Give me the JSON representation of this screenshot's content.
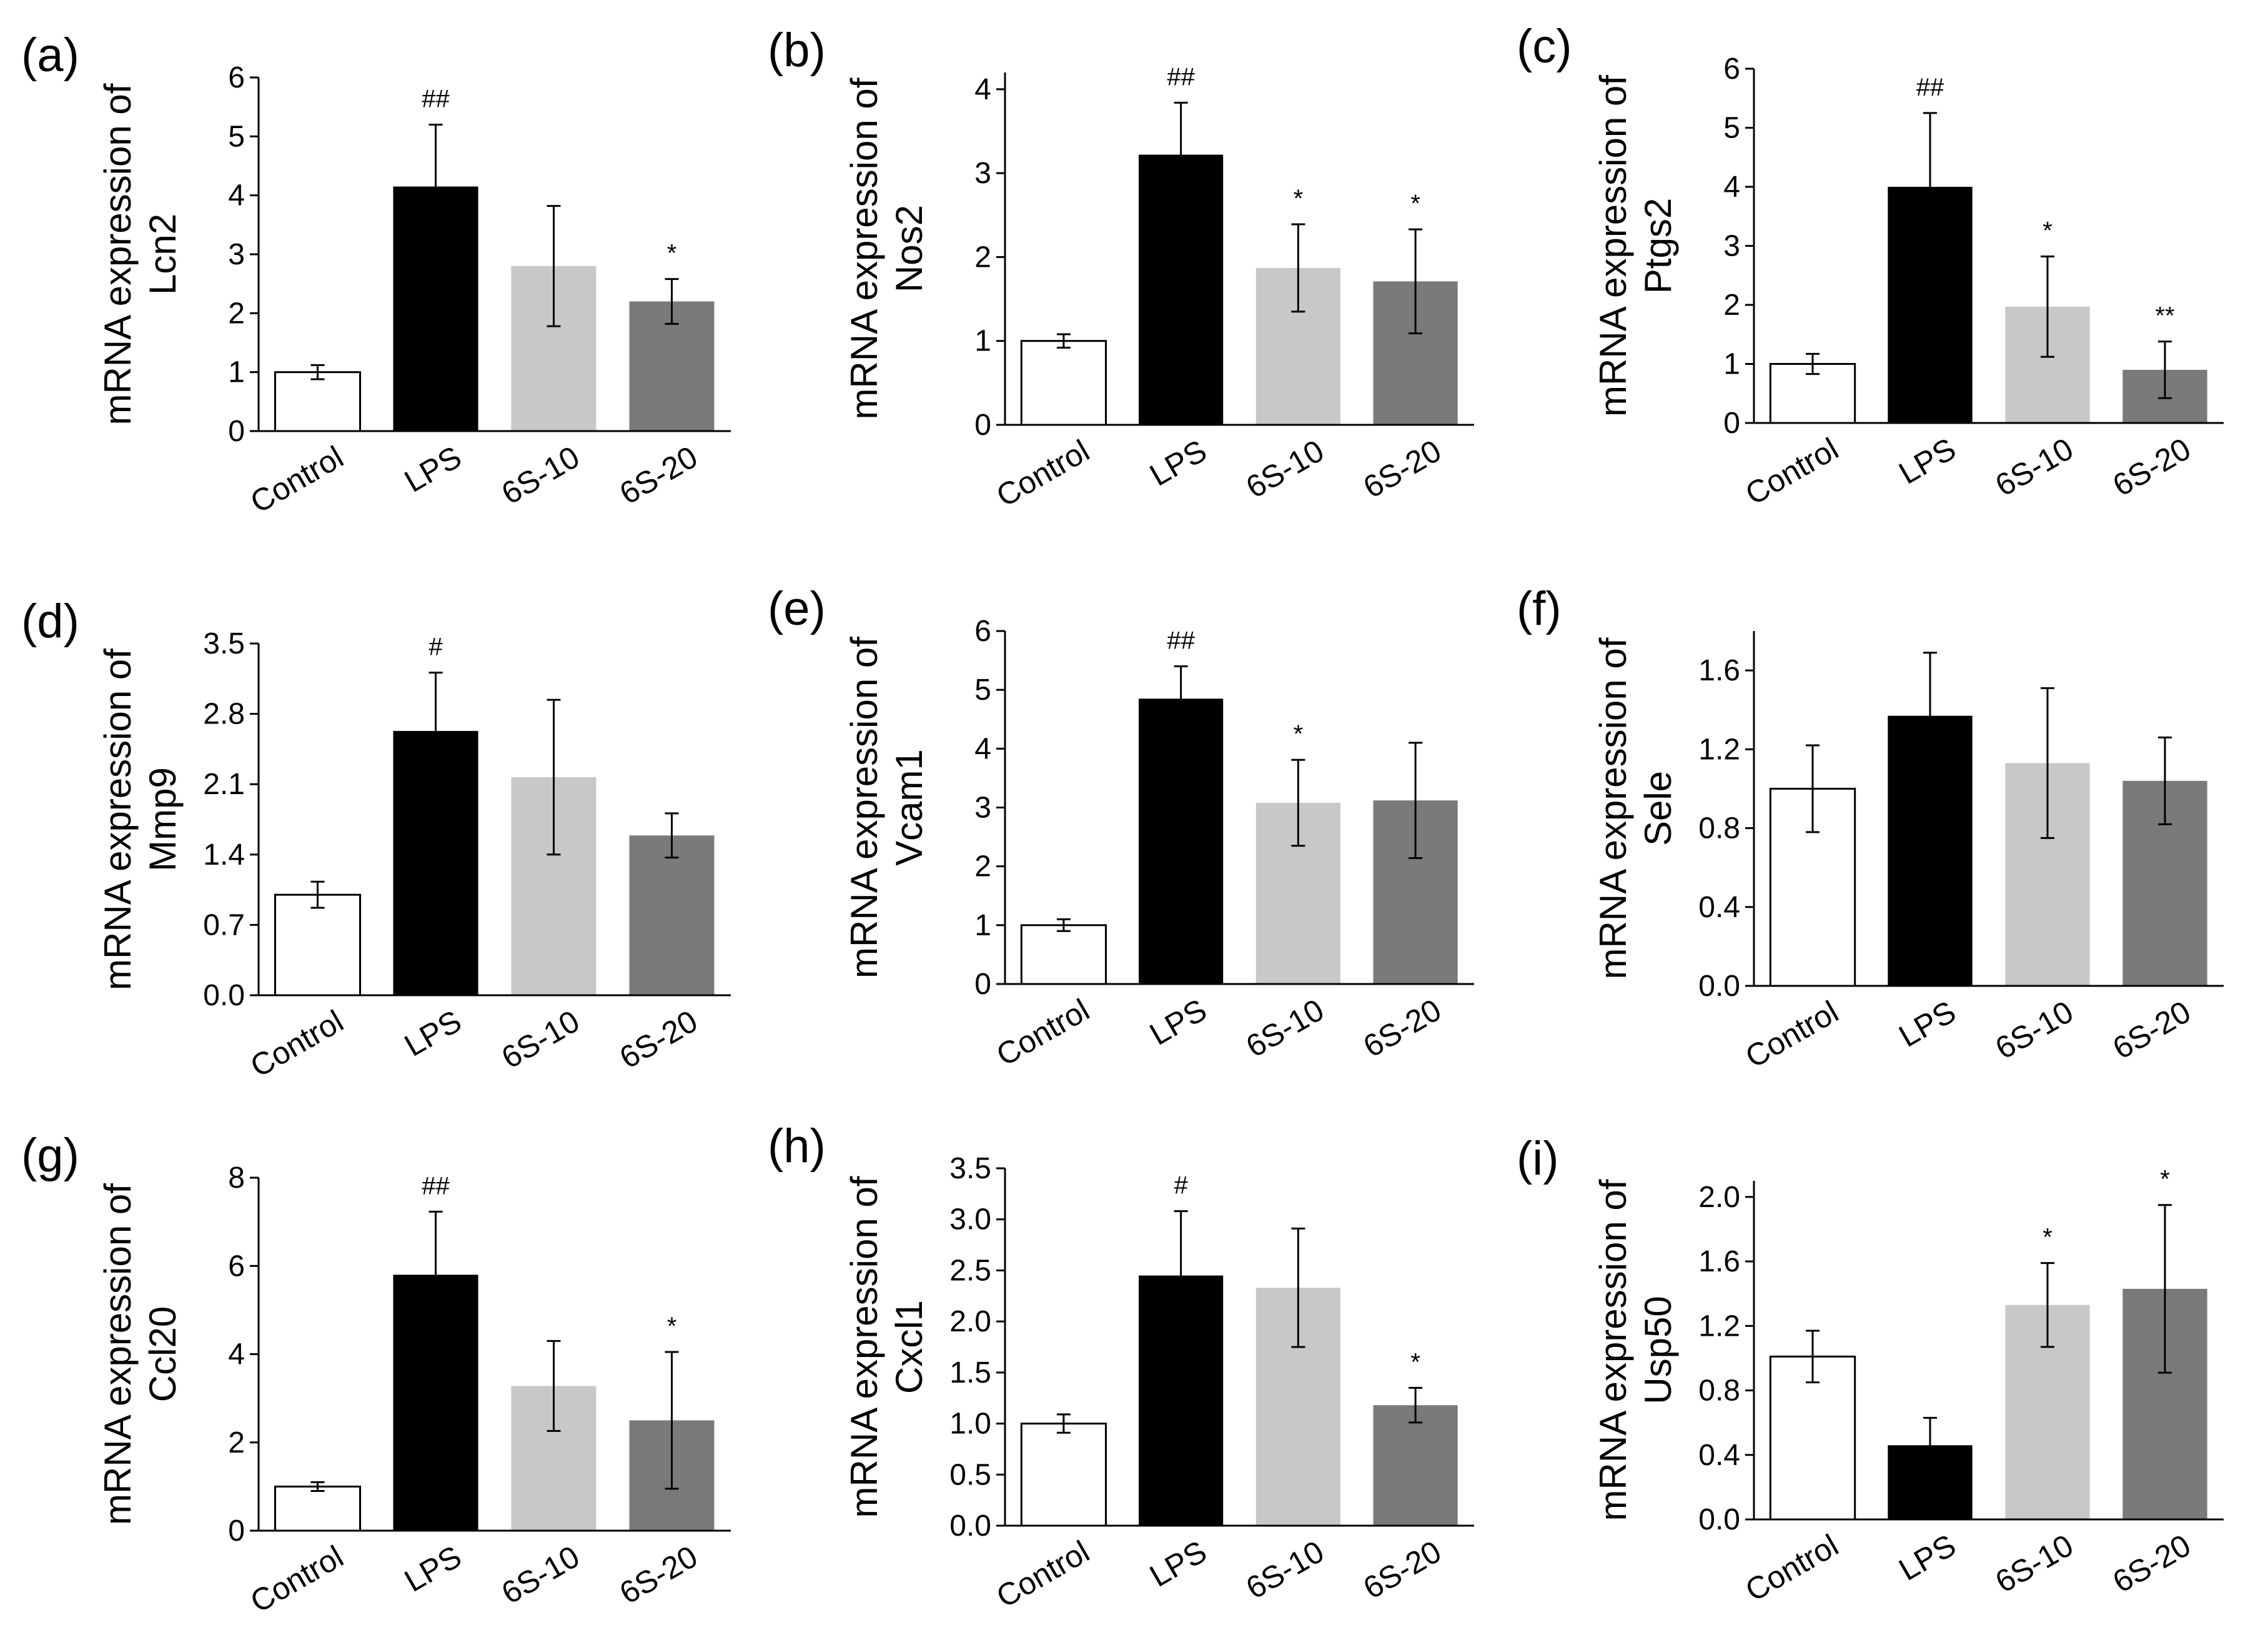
{
  "figure": {
    "categories": [
      "Control",
      "LPS",
      "6S-10",
      "6S-20"
    ],
    "bar_colors": [
      "#ffffff",
      "#000000",
      "#c8c8c8",
      "#7a7a7a"
    ],
    "axis_color": "#000000"
  },
  "chart_data": [
    {
      "panel": "(a)",
      "type": "bar",
      "ylabel_line1": "mRNA expression of",
      "ylabel_line2": "Lcn2",
      "categories": [
        "Control",
        "LPS",
        "6S-10",
        "6S-20"
      ],
      "values": [
        1.0,
        4.15,
        2.8,
        2.2
      ],
      "errors": [
        0.12,
        1.05,
        1.02,
        0.38
      ],
      "significance": [
        "",
        "##",
        "",
        "*"
      ],
      "ylim": [
        0,
        6
      ],
      "yticks": [
        "0",
        "1",
        "2",
        "3",
        "4",
        "5",
        "6"
      ]
    },
    {
      "panel": "(b)",
      "type": "bar",
      "ylabel_line1": "mRNA expression of",
      "ylabel_line2": "Nos2",
      "categories": [
        "Control",
        "LPS",
        "6S-10",
        "6S-20"
      ],
      "values": [
        1.0,
        3.22,
        1.87,
        1.71
      ],
      "errors": [
        0.08,
        0.62,
        0.52,
        0.62
      ],
      "significance": [
        "",
        "##",
        "*",
        "*"
      ],
      "ylim": [
        0,
        4.2
      ],
      "yticks": [
        "0",
        "1",
        "2",
        "3",
        "4"
      ]
    },
    {
      "panel": "(c)",
      "type": "bar",
      "ylabel_line1": "mRNA expression of",
      "ylabel_line2": "Ptgs2",
      "categories": [
        "Control",
        "LPS",
        "6S-10",
        "6S-20"
      ],
      "values": [
        1.0,
        4.0,
        1.97,
        0.9
      ],
      "errors": [
        0.17,
        1.25,
        0.85,
        0.48
      ],
      "significance": [
        "",
        "##",
        "*",
        "**"
      ],
      "ylim": [
        0,
        6
      ],
      "yticks": [
        "0",
        "1",
        "2",
        "3",
        "4",
        "5",
        "6"
      ]
    },
    {
      "panel": "(d)",
      "type": "bar",
      "ylabel_line1": "mRNA expression of",
      "ylabel_line2": "Mmp9",
      "categories": [
        "Control",
        "LPS",
        "6S-10",
        "6S-20"
      ],
      "values": [
        1.0,
        2.63,
        2.17,
        1.59
      ],
      "errors": [
        0.13,
        0.58,
        0.77,
        0.22
      ],
      "significance": [
        "",
        "#",
        "",
        ""
      ],
      "ylim": [
        0,
        3.5
      ],
      "yticks": [
        "0.0",
        "0.7",
        "1.4",
        "2.1",
        "2.8",
        "3.5"
      ]
    },
    {
      "panel": "(e)",
      "type": "bar",
      "ylabel_line1": "mRNA expression of",
      "ylabel_line2": "Vcam1",
      "categories": [
        "Control",
        "LPS",
        "6S-10",
        "6S-20"
      ],
      "values": [
        1.0,
        4.85,
        3.08,
        3.12
      ],
      "errors": [
        0.1,
        0.55,
        0.73,
        0.98
      ],
      "significance": [
        "",
        "##",
        "*",
        ""
      ],
      "ylim": [
        0,
        6
      ],
      "yticks": [
        "0",
        "1",
        "2",
        "3",
        "4",
        "5",
        "6"
      ]
    },
    {
      "panel": "(f)",
      "type": "bar",
      "ylabel_line1": "mRNA expression of",
      "ylabel_line2": "Sele",
      "categories": [
        "Control",
        "LPS",
        "6S-10",
        "6S-20"
      ],
      "values": [
        1.0,
        1.37,
        1.13,
        1.04
      ],
      "errors": [
        0.22,
        0.32,
        0.38,
        0.22
      ],
      "significance": [
        "",
        "",
        "",
        ""
      ],
      "ylim": [
        0,
        1.8
      ],
      "yticks": [
        "0.0",
        "0.4",
        "0.8",
        "1.2",
        "1.6"
      ]
    },
    {
      "panel": "(g)",
      "type": "bar",
      "ylabel_line1": "mRNA expression of",
      "ylabel_line2": "Ccl20",
      "categories": [
        "Control",
        "LPS",
        "6S-10",
        "6S-20"
      ],
      "values": [
        1.0,
        5.8,
        3.28,
        2.5
      ],
      "errors": [
        0.1,
        1.43,
        1.02,
        1.55
      ],
      "significance": [
        "",
        "##",
        "",
        "*"
      ],
      "ylim": [
        0,
        8
      ],
      "yticks": [
        "0",
        "2",
        "4",
        "6",
        "8"
      ]
    },
    {
      "panel": "(h)",
      "type": "bar",
      "ylabel_line1": "mRNA expression of",
      "ylabel_line2": "Cxcl1",
      "categories": [
        "Control",
        "LPS",
        "6S-10",
        "6S-20"
      ],
      "values": [
        1.0,
        2.45,
        2.33,
        1.18
      ],
      "errors": [
        0.09,
        0.63,
        0.58,
        0.17
      ],
      "significance": [
        "",
        "#",
        "",
        "*"
      ],
      "ylim": [
        0,
        3.5
      ],
      "yticks": [
        "0.0",
        "0.5",
        "1.0",
        "1.5",
        "2.0",
        "2.5",
        "3.0",
        "3.5"
      ]
    },
    {
      "panel": "(i)",
      "type": "bar",
      "ylabel_line1": "mRNA expression of",
      "ylabel_line2": "Usp50",
      "categories": [
        "Control",
        "LPS",
        "6S-10",
        "6S-20"
      ],
      "values": [
        1.01,
        0.46,
        1.33,
        1.43
      ],
      "errors": [
        0.16,
        0.17,
        0.26,
        0.52
      ],
      "significance": [
        "",
        "",
        "*",
        "*"
      ],
      "ylim": [
        0,
        2.1
      ],
      "yticks": [
        "0.0",
        "0.4",
        "0.8",
        "1.2",
        "1.6",
        "2.0"
      ]
    }
  ]
}
